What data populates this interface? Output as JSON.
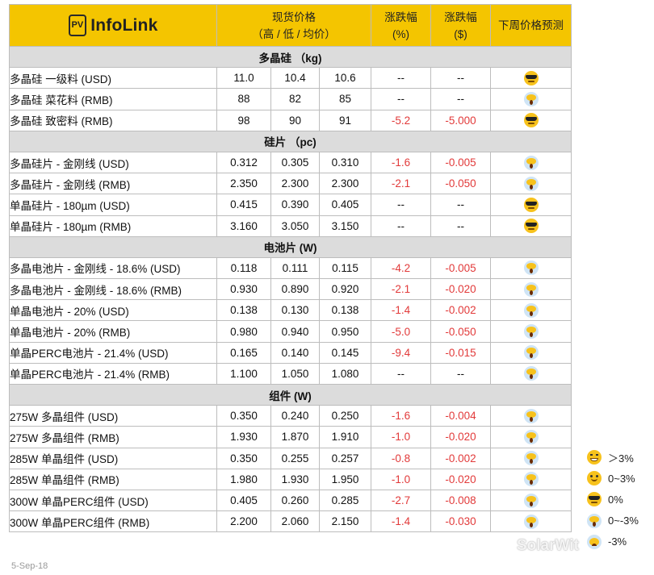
{
  "brand": {
    "logo_badge": "PV",
    "logo_name": "InfoLink"
  },
  "header": {
    "price_title": "现货价格",
    "price_sub": "（高 / 低 / 均价）",
    "change_pct": "涨跌幅",
    "change_pct_unit": "(%)",
    "change_abs": "涨跌幅",
    "change_abs_unit": "($)",
    "forecast": "下周价格预测"
  },
  "sections": [
    {
      "title": "多晶硅 （kg)",
      "rows": [
        {
          "name": "多晶硅 一级料 (USD)",
          "high": "11.0",
          "low": "10.4",
          "avg": "10.6",
          "pct": "--",
          "abs": "--",
          "neg": false,
          "forecast": "cool"
        },
        {
          "name": "多晶硅 菜花料 (RMB)",
          "high": "88",
          "low": "82",
          "avg": "85",
          "pct": "--",
          "abs": "--",
          "neg": false,
          "forecast": "scream"
        },
        {
          "name": "多晶硅 致密料 (RMB)",
          "high": "98",
          "low": "90",
          "avg": "91",
          "pct": "-5.2",
          "abs": "-5.000",
          "neg": true,
          "forecast": "cool"
        }
      ]
    },
    {
      "title": "硅片 （pc)",
      "rows": [
        {
          "name": "多晶硅片 - 金刚线 (USD)",
          "high": "0.312",
          "low": "0.305",
          "avg": "0.310",
          "pct": "-1.6",
          "abs": "-0.005",
          "neg": true,
          "forecast": "scream"
        },
        {
          "name": "多晶硅片 - 金刚线 (RMB)",
          "high": "2.350",
          "low": "2.300",
          "avg": "2.300",
          "pct": "-2.1",
          "abs": "-0.050",
          "neg": true,
          "forecast": "scream"
        },
        {
          "name": "单晶硅片 - 180µm (USD)",
          "high": "0.415",
          "low": "0.390",
          "avg": "0.405",
          "pct": "--",
          "abs": "--",
          "neg": false,
          "forecast": "cool"
        },
        {
          "name": "单晶硅片 - 180µm (RMB)",
          "high": "3.160",
          "low": "3.050",
          "avg": "3.150",
          "pct": "--",
          "abs": "--",
          "neg": false,
          "forecast": "cool"
        }
      ]
    },
    {
      "title": "电池片 (W)",
      "rows": [
        {
          "name": "多晶电池片 - 金刚线 - 18.6% (USD)",
          "high": "0.118",
          "low": "0.111",
          "avg": "0.115",
          "pct": "-4.2",
          "abs": "-0.005",
          "neg": true,
          "forecast": "scream"
        },
        {
          "name": "多晶电池片 - 金刚线 - 18.6% (RMB)",
          "high": "0.930",
          "low": "0.890",
          "avg": "0.920",
          "pct": "-2.1",
          "abs": "-0.020",
          "neg": true,
          "forecast": "scream"
        },
        {
          "name": "单晶电池片 - 20% (USD)",
          "high": "0.138",
          "low": "0.130",
          "avg": "0.138",
          "pct": "-1.4",
          "abs": "-0.002",
          "neg": true,
          "forecast": "scream"
        },
        {
          "name": "单晶电池片 - 20% (RMB)",
          "high": "0.980",
          "low": "0.940",
          "avg": "0.950",
          "pct": "-5.0",
          "abs": "-0.050",
          "neg": true,
          "forecast": "scream"
        },
        {
          "name": "单晶PERC电池片 - 21.4% (USD)",
          "high": "0.165",
          "low": "0.140",
          "avg": "0.145",
          "pct": "-9.4",
          "abs": "-0.015",
          "neg": true,
          "forecast": "scream"
        },
        {
          "name": "单晶PERC电池片 - 21.4% (RMB)",
          "high": "1.100",
          "low": "1.050",
          "avg": "1.080",
          "pct": "--",
          "abs": "--",
          "neg": false,
          "forecast": "scream"
        }
      ]
    },
    {
      "title": "组件 (W)",
      "rows": [
        {
          "name": "275W 多晶组件 (USD)",
          "high": "0.350",
          "low": "0.240",
          "avg": "0.250",
          "pct": "-1.6",
          "abs": "-0.004",
          "neg": true,
          "forecast": "scream"
        },
        {
          "name": "275W 多晶组件 (RMB)",
          "high": "1.930",
          "low": "1.870",
          "avg": "1.910",
          "pct": "-1.0",
          "abs": "-0.020",
          "neg": true,
          "forecast": "scream"
        },
        {
          "name": "285W 单晶组件 (USD)",
          "high": "0.350",
          "low": "0.255",
          "avg": "0.257",
          "pct": "-0.8",
          "abs": "-0.002",
          "neg": true,
          "forecast": "scream"
        },
        {
          "name": "285W 单晶组件 (RMB)",
          "high": "1.980",
          "low": "1.930",
          "avg": "1.950",
          "pct": "-1.0",
          "abs": "-0.020",
          "neg": true,
          "forecast": "scream"
        },
        {
          "name": "300W 单晶PERC组件 (USD)",
          "high": "0.405",
          "low": "0.260",
          "avg": "0.285",
          "pct": "-2.7",
          "abs": "-0.008",
          "neg": true,
          "forecast": "scream"
        },
        {
          "name": "300W 单晶PERC组件 (RMB)",
          "high": "2.200",
          "low": "2.060",
          "avg": "2.150",
          "pct": "-1.4",
          "abs": "-0.030",
          "neg": true,
          "forecast": "scream"
        }
      ]
    }
  ],
  "legend": [
    {
      "icon": "grin",
      "label": "＞3%"
    },
    {
      "icon": "smile",
      "label": "0~3%"
    },
    {
      "icon": "cool",
      "label": "0%"
    },
    {
      "icon": "scream",
      "label": "0~-3%"
    },
    {
      "icon": "fear",
      "label": "-3%"
    }
  ],
  "footer": {
    "date": "5-Sep-18"
  },
  "watermark": {
    "text": "SolarWit"
  }
}
